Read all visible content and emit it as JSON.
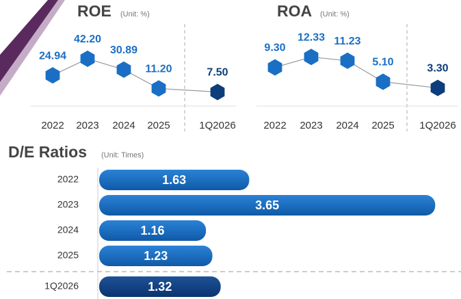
{
  "chart_data": [
    {
      "type": "line",
      "title": "ROE",
      "subtitle": "(Unit: %)",
      "categories": [
        "2022",
        "2023",
        "2024",
        "2025",
        "1Q2026"
      ],
      "values": [
        24.94,
        42.2,
        30.89,
        11.2,
        7.5
      ],
      "value_labels": [
        "24.94",
        "42.20",
        "30.89",
        "11.20",
        "7.50"
      ],
      "color": "#1a6fc4",
      "highlight_color": "#0d3d7a",
      "ylim": [
        0,
        50
      ]
    },
    {
      "type": "line",
      "title": "ROA",
      "subtitle": "(Unit: %)",
      "categories": [
        "2022",
        "2023",
        "2024",
        "2025",
        "1Q2026"
      ],
      "values": [
        9.3,
        12.33,
        11.23,
        5.1,
        3.3
      ],
      "value_labels": [
        "9.30",
        "12.33",
        "11.23",
        "5.10",
        "3.30"
      ],
      "color": "#1a6fc4",
      "highlight_color": "#0d3d7a",
      "ylim": [
        0,
        14
      ]
    },
    {
      "type": "hbar",
      "title": "D/E Ratios",
      "subtitle": "(Unit: Times)",
      "categories": [
        "2022",
        "2023",
        "2024",
        "2025",
        "1Q2026"
      ],
      "values": [
        1.63,
        3.65,
        1.16,
        1.23,
        1.32
      ],
      "xlim": [
        0,
        3.7
      ]
    }
  ]
}
